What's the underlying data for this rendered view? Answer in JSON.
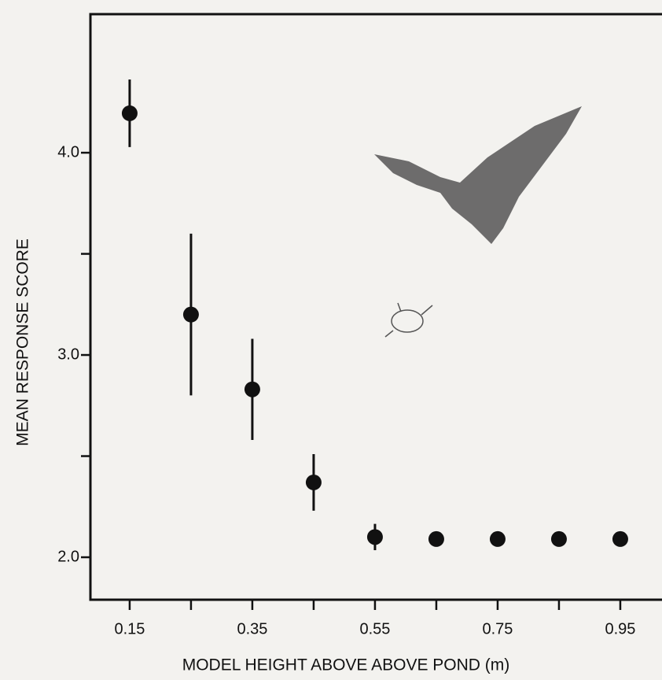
{
  "chart_data": {
    "type": "scatter",
    "x_label": "MODEL HEIGHT ABOVE ABOVE POND (m)",
    "y_label": "MEAN RESPONSE SCORE",
    "x": [
      0.15,
      0.25,
      0.35,
      0.45,
      0.55,
      0.65,
      0.75,
      0.85,
      0.95
    ],
    "values": [
      4.195,
      3.2,
      2.83,
      2.37,
      2.1,
      2.09,
      2.09,
      2.09,
      2.09
    ],
    "errors": [
      0.167,
      0.4,
      0.25,
      0.14,
      0.065,
      null,
      null,
      null,
      null
    ],
    "color": "#111111",
    "xlim": [
      0.086,
      1.018
    ],
    "ylim": [
      1.79,
      4.685
    ],
    "xticks": [
      0.15,
      0.35,
      0.55,
      0.75,
      0.95
    ],
    "xminorticks": [
      0.25,
      0.45,
      0.65,
      0.85
    ],
    "yticks": [
      {
        "value": 2,
        "label": "2.0"
      },
      {
        "value": 3,
        "label": "3.0"
      },
      {
        "value": 4,
        "label": "4.0"
      }
    ],
    "yminorticks": [
      2.5,
      3.5
    ],
    "grid": false
  }
}
